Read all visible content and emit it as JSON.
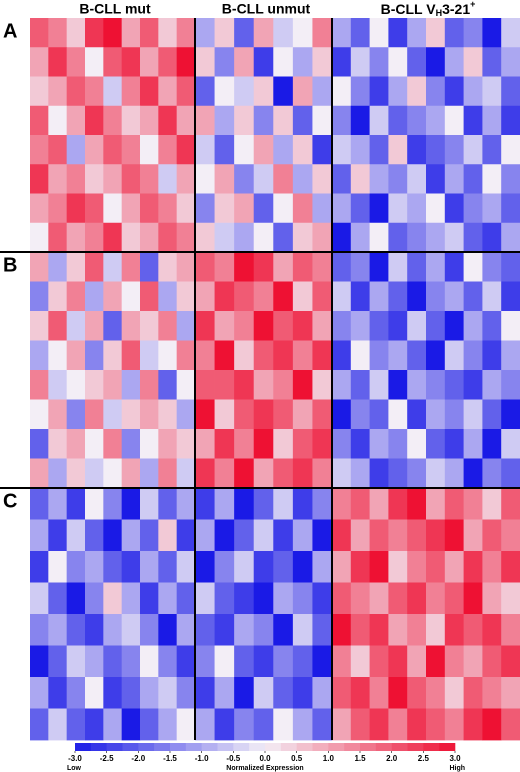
{
  "chart_data": {
    "type": "heatmap",
    "row_groups": [
      "A",
      "B",
      "C"
    ],
    "groups": [
      {
        "name": "B-CLL mut",
        "values": [
          [
            2,
            1.5,
            0.5,
            2.5,
            3,
            1,
            2,
            0.5,
            1.5
          ],
          [
            1,
            2.5,
            1.5,
            0,
            2,
            2.5,
            1,
            2,
            3
          ],
          [
            0.5,
            1,
            2,
            1.5,
            -0.5,
            1.5,
            2.5,
            1,
            2
          ],
          [
            2,
            0,
            1,
            2.5,
            1.5,
            0.5,
            1,
            2.5,
            1
          ],
          [
            1.5,
            2,
            -1,
            1,
            2,
            1.5,
            0,
            1.5,
            2.5
          ],
          [
            2.5,
            1,
            1.5,
            0.5,
            1,
            2,
            1.5,
            -0.5,
            1
          ],
          [
            1,
            1.5,
            2.5,
            2,
            0,
            1,
            2,
            1.5,
            0.5
          ],
          [
            0,
            2,
            1,
            1.5,
            2.5,
            0.5,
            1,
            2,
            1.5
          ],
          [
            1,
            -1,
            0.5,
            2,
            -0.5,
            1.5,
            -2,
            0.5,
            1
          ],
          [
            -1.5,
            0.5,
            1.5,
            -1,
            1,
            0,
            2,
            -1,
            0.5
          ],
          [
            0.5,
            2,
            -0.5,
            1,
            -2,
            1,
            0.5,
            1.5,
            -1
          ],
          [
            -1,
            0,
            1,
            -1.5,
            0.5,
            2,
            -0.5,
            0,
            1.5
          ],
          [
            1.5,
            -0.5,
            0,
            0.5,
            1,
            -1,
            1.5,
            -2,
            0
          ],
          [
            0,
            1,
            -1.5,
            1.5,
            -0.5,
            0.5,
            1,
            0.5,
            -1
          ],
          [
            -2,
            0.5,
            1,
            0,
            1.5,
            -1.5,
            0,
            1,
            0.5
          ],
          [
            1,
            -1,
            0.5,
            -0.5,
            0,
            1,
            -1,
            1.5,
            -0.5
          ],
          [
            -2,
            -1,
            -2.5,
            0,
            -1.5,
            -3,
            -0.5,
            -2,
            -1
          ],
          [
            -1,
            -2.5,
            -0.5,
            -2,
            -3,
            -1,
            -2,
            0.5,
            -2.5
          ],
          [
            -2.5,
            0,
            -1.5,
            -1,
            -2,
            -2.5,
            -1,
            -2,
            -0.5
          ],
          [
            -0.5,
            -2,
            -3,
            -1.5,
            0.5,
            -1,
            -2.5,
            -1,
            -2
          ],
          [
            -1.5,
            -1,
            -2,
            -2.5,
            -1,
            -0.5,
            -1.5,
            -3,
            -1
          ],
          [
            -3,
            -2,
            -0.5,
            -1,
            -2,
            -1.5,
            0,
            -1.5,
            -2.5
          ],
          [
            -1,
            -2.5,
            -1.5,
            0,
            -2.5,
            -2,
            -1,
            -0.5,
            -1.5
          ],
          [
            -2,
            -0.5,
            -2,
            -2.5,
            -1,
            -3,
            -2,
            -1,
            0
          ]
        ]
      },
      {
        "name": "B-CLL unmut",
        "values": [
          [
            -1,
            0.5,
            -2,
            1,
            -0.5,
            0,
            1.5
          ],
          [
            0.5,
            -1.5,
            1,
            -2.5,
            0,
            -1,
            0.5
          ],
          [
            -2,
            0,
            -0.5,
            0.5,
            -3,
            1,
            -1
          ],
          [
            1,
            -1,
            0.5,
            -1.5,
            0.5,
            -2,
            0
          ],
          [
            -0.5,
            -2,
            0,
            1,
            -1,
            0.5,
            -2.5
          ],
          [
            0,
            1,
            -1.5,
            -0.5,
            1.5,
            -1,
            0.5
          ],
          [
            -1.5,
            0.5,
            1,
            -2,
            0,
            1.5,
            -1
          ],
          [
            0.5,
            -0.5,
            -1,
            0,
            -2,
            0.5,
            1
          ],
          [
            2,
            1.5,
            3,
            2.5,
            1,
            2,
            1.5
          ],
          [
            1,
            2.5,
            2,
            1.5,
            3,
            0.5,
            2
          ],
          [
            2.5,
            1,
            1.5,
            3,
            2,
            2.5,
            1
          ],
          [
            1.5,
            3,
            0.5,
            2,
            2.5,
            1.5,
            2.5
          ],
          [
            2,
            2,
            2.5,
            1,
            1.5,
            3,
            0.5
          ],
          [
            3,
            0.5,
            2,
            2.5,
            2,
            1,
            2
          ],
          [
            1,
            2.5,
            1.5,
            3,
            0.5,
            2,
            2.5
          ],
          [
            2.5,
            1.5,
            3,
            1,
            2,
            2.5,
            1.5
          ],
          [
            -2.5,
            -1,
            -3,
            -2,
            -0.5,
            -2.5,
            -1.5
          ],
          [
            -1,
            -3,
            -2,
            -0.5,
            -2.5,
            -1,
            -3
          ],
          [
            -3,
            -1.5,
            -0.5,
            -2.5,
            -2,
            -3,
            -1
          ],
          [
            -0.5,
            -2,
            -2.5,
            -3,
            -1,
            -1.5,
            -2.5
          ],
          [
            -2,
            -2.5,
            -1,
            -1.5,
            -3,
            -0.5,
            -2
          ],
          [
            -1.5,
            0,
            -2,
            -2.5,
            -1.5,
            -2,
            -3
          ],
          [
            -2.5,
            -1,
            -3,
            -0.5,
            -2,
            -2.5,
            -1
          ],
          [
            -1,
            -2.5,
            -1.5,
            -2,
            0,
            -1,
            -2
          ]
        ]
      },
      {
        "name": "B-CLL V",
        "name_sub": "H",
        "name_rest": "3-21",
        "name_sup": "+",
        "values": [
          [
            -1,
            -2,
            0,
            -2.5,
            -1,
            0.5,
            -2,
            -1.5,
            -3,
            -0.5
          ],
          [
            -2.5,
            -0.5,
            -1.5,
            0,
            -2,
            -3,
            -1,
            0.5,
            -2,
            -1
          ],
          [
            0,
            -1.5,
            -2.5,
            -1,
            0.5,
            -1.5,
            -2.5,
            -1,
            -0.5,
            -2
          ],
          [
            -1.5,
            -3,
            -0.5,
            -2,
            -1.5,
            -1,
            0,
            -2.5,
            -1,
            -2.5
          ],
          [
            -0.5,
            -1,
            -2,
            0.5,
            -2.5,
            -2,
            -1.5,
            -0.5,
            -2,
            0
          ],
          [
            -2,
            0.5,
            -1,
            -1.5,
            -0.5,
            -2.5,
            -1,
            -2,
            0,
            -1.5
          ],
          [
            -1,
            -2,
            -3,
            -0.5,
            -1,
            0,
            -2.5,
            -1.5,
            -1,
            -2
          ],
          [
            -3,
            -1,
            0,
            -2,
            -1.5,
            -1,
            -0.5,
            -2,
            -2.5,
            -1
          ],
          [
            -2,
            -1.5,
            -3,
            -0.5,
            -2,
            -1,
            -2.5,
            0,
            -1.5,
            -2
          ],
          [
            -0.5,
            -2.5,
            -1,
            -2,
            -3,
            -1.5,
            -1,
            -2,
            -0.5,
            -2.5
          ],
          [
            -1.5,
            -1,
            -2,
            -2.5,
            -0.5,
            -2,
            -3,
            -1,
            -2,
            0
          ],
          [
            -2.5,
            0,
            -1.5,
            -1,
            -2,
            -3,
            -0.5,
            -1.5,
            -2.5,
            -1
          ],
          [
            -1,
            -2,
            -0.5,
            -3,
            -1,
            -1.5,
            -2,
            -2.5,
            -1,
            -1.5
          ],
          [
            -3,
            -1.5,
            -2,
            0,
            -2.5,
            -1,
            -1.5,
            -0.5,
            -2,
            -3
          ],
          [
            -1.5,
            -2.5,
            -1,
            -1.5,
            0,
            -2,
            -2.5,
            -1,
            -3,
            -0.5
          ],
          [
            -0.5,
            -1,
            -2.5,
            -2,
            -1.5,
            -0.5,
            -1,
            -3,
            -1.5,
            -2
          ],
          [
            1.5,
            2,
            1,
            2.5,
            3,
            1,
            2,
            1.5,
            0.5,
            2
          ],
          [
            2.5,
            1,
            2,
            1.5,
            2,
            2.5,
            3,
            1,
            2,
            1.5
          ],
          [
            1,
            2.5,
            3,
            0.5,
            1.5,
            2,
            1,
            2.5,
            1.5,
            2.5
          ],
          [
            2,
            1.5,
            1,
            2,
            2.5,
            1.5,
            2,
            3,
            1,
            0.5
          ],
          [
            3,
            2,
            2.5,
            1,
            1.5,
            0.5,
            2.5,
            2,
            2.5,
            1.5
          ],
          [
            1.5,
            0.5,
            2,
            2.5,
            1,
            3,
            1.5,
            1,
            2,
            2.5
          ],
          [
            2,
            2.5,
            1.5,
            3,
            2,
            1.5,
            0.5,
            2,
            1.5,
            1
          ],
          [
            1,
            2,
            2.5,
            1.5,
            2.5,
            2,
            1.5,
            2.5,
            3,
            2
          ]
        ]
      }
    ],
    "colorbar": {
      "label": "Normalized Expression",
      "low_label": "Low",
      "high_label": "High",
      "zlim": [
        -3,
        3
      ],
      "colors": [
        "#1a1ae6",
        "#f3eef6",
        "#ee1133"
      ],
      "ticks": [
        {
          "value": -3,
          "label": "-3.0"
        },
        {
          "value": -2.5,
          "label": "-2.5"
        },
        {
          "value": -2,
          "label": "-2.0"
        },
        {
          "value": -1.5,
          "label": "-1.5"
        },
        {
          "value": -1,
          "label": "-1.0"
        },
        {
          "value": -0.5,
          "label": "-0.5"
        },
        {
          "value": 0,
          "label": "0.0"
        },
        {
          "value": 0.5,
          "label": "0.5"
        },
        {
          "value": 1,
          "label": "1.0"
        },
        {
          "value": 1.5,
          "label": "1.5"
        },
        {
          "value": 2,
          "label": "2.0"
        },
        {
          "value": 2.5,
          "label": "2.5"
        },
        {
          "value": 3,
          "label": "3.0"
        }
      ]
    }
  }
}
